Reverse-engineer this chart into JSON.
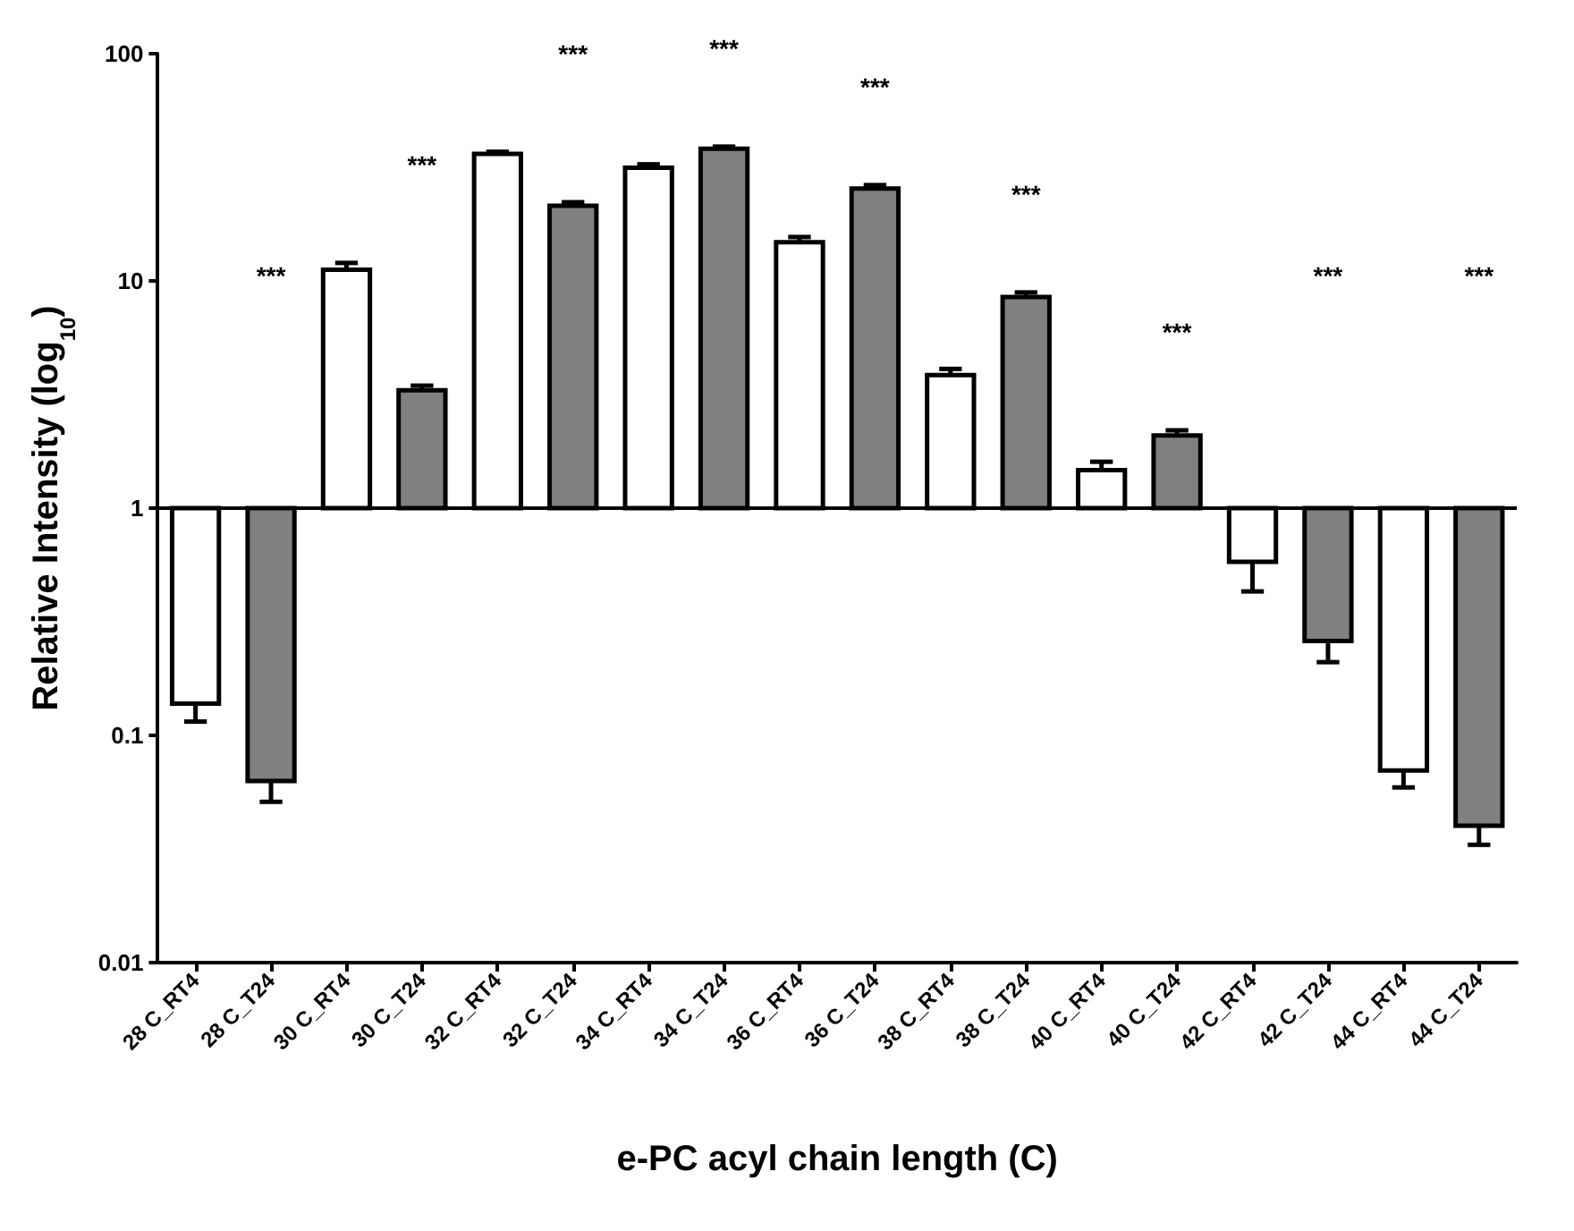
{
  "chart_data": {
    "type": "bar",
    "ylabel": "Relative Intensity (log$_{10}$)",
    "xlabel": "e-PC acyl chain length (C)",
    "categories": [
      "28 C_RT4",
      "28 C_T24",
      "30 C_RT4",
      "30 C_T24",
      "32 C_RT4",
      "32 C_T24",
      "34 C_RT4",
      "34 C_T24",
      "36 C_RT4",
      "36 C_T24",
      "38 C_RT4",
      "38 C_T24",
      "40 C_RT4",
      "40 C_T24",
      "42 C_RT4",
      "42 C_T24",
      "44 C_RT4",
      "44 C_T24"
    ],
    "base": [
      1,
      1,
      1,
      1,
      1,
      1,
      1,
      1,
      1,
      1,
      1,
      1,
      1,
      1,
      1,
      1,
      1,
      1
    ],
    "values": [
      -0.862,
      -0.937,
      10.2,
      2.3,
      35.2,
      20.4,
      30.5,
      37.2,
      13.8,
      24.5,
      2.85,
      7.5,
      0.47,
      1.09,
      -0.42,
      -0.74,
      -0.93,
      -0.96
    ],
    "colors": [
      "#ffffff",
      "#808080",
      "#ffffff",
      "#808080",
      "#ffffff",
      "#808080",
      "#ffffff",
      "#808080",
      "#ffffff",
      "#808080",
      "#ffffff",
      "#808080",
      "#ffffff",
      "#808080",
      "#ffffff",
      "#808080",
      "#ffffff",
      "#808080"
    ],
    "errors": [
      [
        0.115,
        0.138
      ],
      [
        0.051,
        0.063
      ],
      [
        11.2,
        12
      ],
      [
        3.3,
        3.46
      ],
      [
        36.2,
        37
      ],
      [
        21.4,
        22.2
      ],
      [
        31.5,
        32.6
      ],
      [
        38.2,
        39
      ],
      [
        14.8,
        15.6
      ],
      [
        25.5,
        26.4
      ],
      [
        3.85,
        4.1
      ],
      [
        8.5,
        8.9
      ],
      [
        1.47,
        1.6
      ],
      [
        2.09,
        2.2
      ],
      [
        0.43,
        0.58
      ],
      [
        0.21,
        0.26
      ],
      [
        0.059,
        0.07
      ],
      [
        0.033,
        0.04
      ]
    ],
    "log": true,
    "ylim": [
      0.01,
      100
    ],
    "yticks": [
      0.01,
      0.1,
      1,
      10,
      100
    ],
    "grid": false,
    "ref_lines": [
      {
        "axis": "y",
        "value": 1,
        "color": "#000000"
      }
    ],
    "annotations": [
      "***",
      "***",
      "***",
      "***",
      "***",
      "***",
      "***",
      "***",
      "***"
    ]
  }
}
